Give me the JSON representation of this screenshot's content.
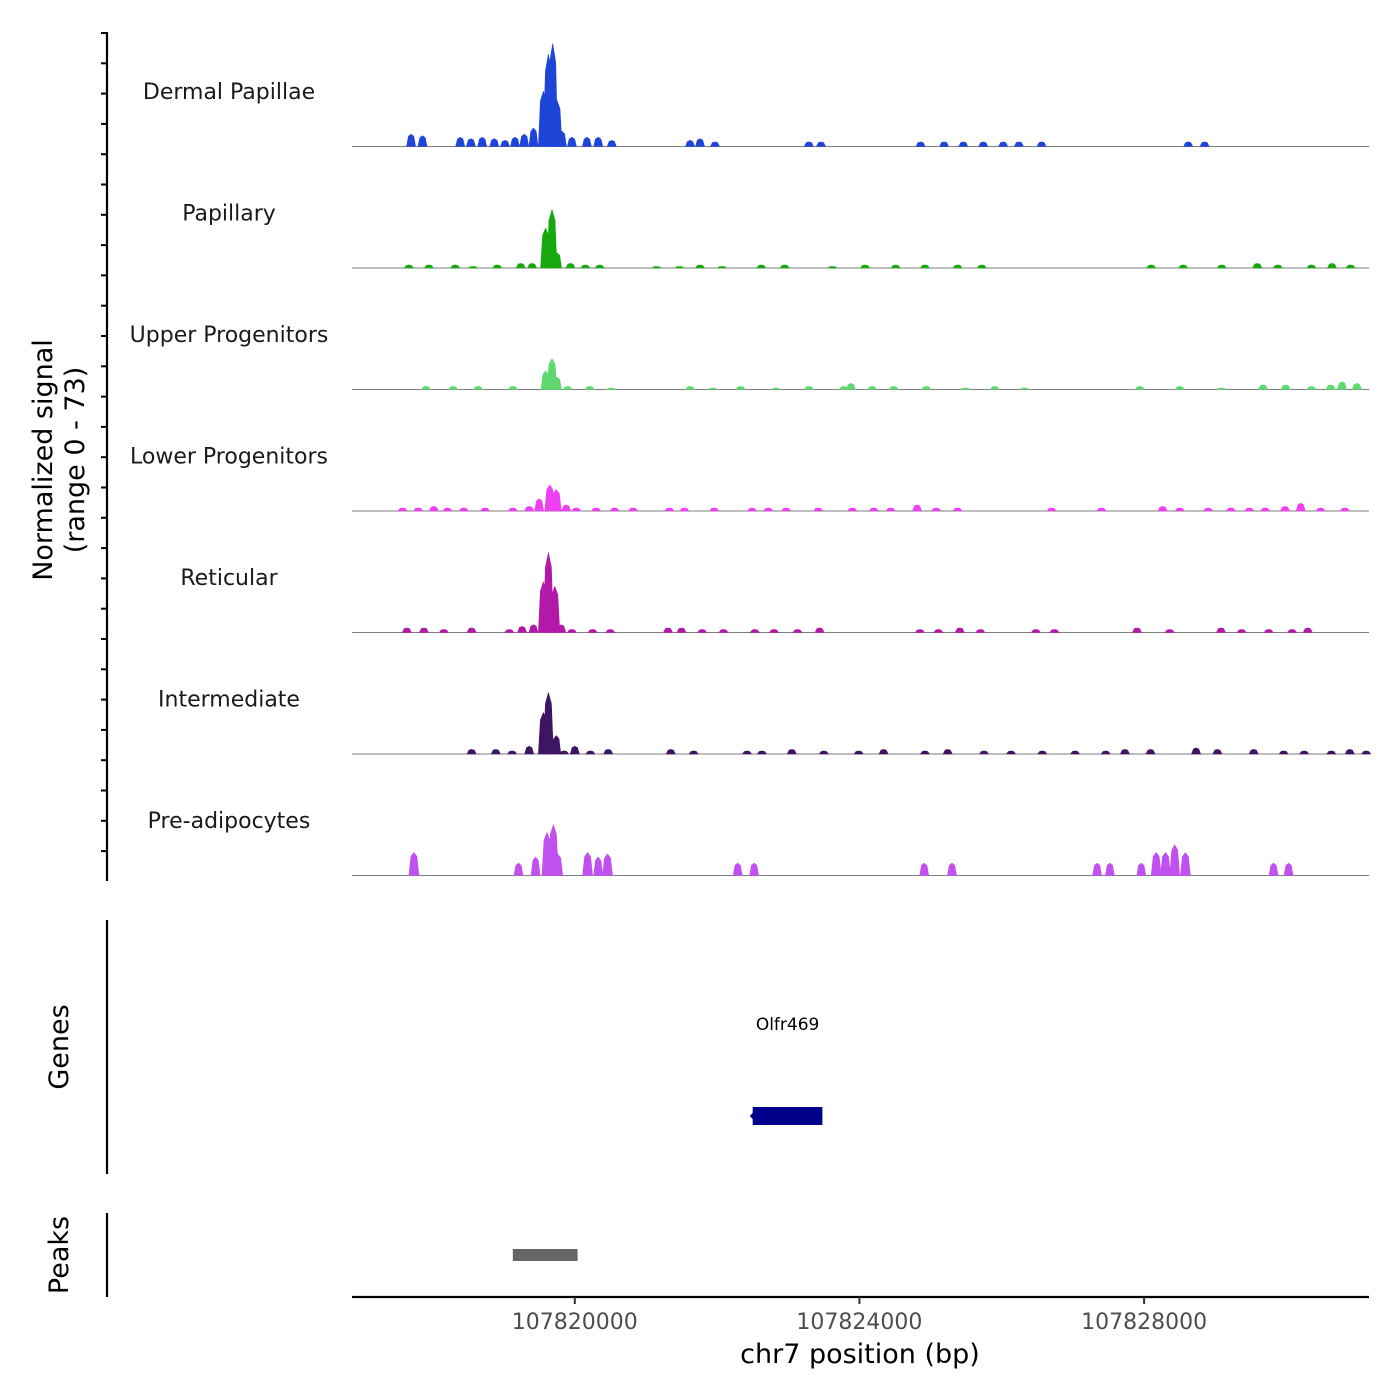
{
  "chart_data": {
    "type": "area",
    "title": "",
    "signal_panel": {
      "ylabel_line1": "Normalized signal",
      "ylabel_line2": "(range 0 - 73)",
      "ylim": [
        0,
        73
      ],
      "xlim": [
        107816870,
        107831160
      ],
      "tracks": [
        {
          "name": "Dermal Papillae",
          "color": "#1f44d8",
          "peaks": [
            [
              107817700,
              8
            ],
            [
              107817860,
              7
            ],
            [
              107818390,
              6
            ],
            [
              107818540,
              5
            ],
            [
              107818700,
              6
            ],
            [
              107818870,
              5
            ],
            [
              107819020,
              4
            ],
            [
              107819160,
              6
            ],
            [
              107819290,
              8
            ],
            [
              107819420,
              12
            ],
            [
              107819560,
              36
            ],
            [
              107819630,
              60
            ],
            [
              107819690,
              67
            ],
            [
              107819750,
              30
            ],
            [
              107819820,
              10
            ],
            [
              107819960,
              6
            ],
            [
              107820170,
              6
            ],
            [
              107820330,
              6
            ],
            [
              107820520,
              4
            ],
            [
              107821620,
              4
            ],
            [
              107821760,
              5
            ],
            [
              107821970,
              3
            ],
            [
              107823290,
              3
            ],
            [
              107823460,
              3
            ],
            [
              107824860,
              3
            ],
            [
              107825190,
              3
            ],
            [
              107825460,
              3
            ],
            [
              107825740,
              3
            ],
            [
              107826020,
              3
            ],
            [
              107826240,
              3
            ],
            [
              107826560,
              3
            ],
            [
              107828620,
              3
            ],
            [
              107828850,
              3
            ]
          ]
        },
        {
          "name": "Papillary",
          "color": "#17a80e",
          "peaks": [
            [
              107817670,
              2
            ],
            [
              107817950,
              2
            ],
            [
              107818320,
              2
            ],
            [
              107818570,
              1
            ],
            [
              107818910,
              2
            ],
            [
              107819240,
              3
            ],
            [
              107819400,
              3
            ],
            [
              107819590,
              26
            ],
            [
              107819680,
              38
            ],
            [
              107819750,
              10
            ],
            [
              107819940,
              3
            ],
            [
              107820150,
              2
            ],
            [
              107820350,
              2
            ],
            [
              107821150,
              1
            ],
            [
              107821470,
              1
            ],
            [
              107821760,
              2
            ],
            [
              107822070,
              1
            ],
            [
              107822620,
              2
            ],
            [
              107822950,
              2
            ],
            [
              107823620,
              1
            ],
            [
              107824080,
              2
            ],
            [
              107824510,
              2
            ],
            [
              107824920,
              2
            ],
            [
              107825380,
              2
            ],
            [
              107825720,
              2
            ],
            [
              107828100,
              2
            ],
            [
              107828550,
              2
            ],
            [
              107829090,
              2
            ],
            [
              107829590,
              3
            ],
            [
              107829880,
              2
            ],
            [
              107830350,
              2
            ],
            [
              107830640,
              3
            ],
            [
              107830900,
              2
            ]
          ]
        },
        {
          "name": "Upper Progenitors",
          "color": "#5fd870",
          "peaks": [
            [
              107817910,
              2
            ],
            [
              107818290,
              2
            ],
            [
              107818640,
              2
            ],
            [
              107819130,
              2
            ],
            [
              107819590,
              12
            ],
            [
              107819680,
              20
            ],
            [
              107819750,
              8
            ],
            [
              107819900,
              2
            ],
            [
              107820210,
              2
            ],
            [
              107820510,
              1
            ],
            [
              107821620,
              2
            ],
            [
              107821940,
              1
            ],
            [
              107822330,
              2
            ],
            [
              107822830,
              1
            ],
            [
              107823290,
              2
            ],
            [
              107823780,
              2
            ],
            [
              107823880,
              4
            ],
            [
              107824180,
              2
            ],
            [
              107824480,
              2
            ],
            [
              107824940,
              2
            ],
            [
              107825490,
              1
            ],
            [
              107825900,
              2
            ],
            [
              107826320,
              1
            ],
            [
              107827940,
              2
            ],
            [
              107828500,
              2
            ],
            [
              107829090,
              1
            ],
            [
              107829670,
              3
            ],
            [
              107829990,
              3
            ],
            [
              107830350,
              2
            ],
            [
              107830620,
              3
            ],
            [
              107830780,
              5
            ],
            [
              107830990,
              4
            ]
          ]
        },
        {
          "name": "Lower Progenitors",
          "color": "#ee3ff2",
          "peaks": [
            [
              107817580,
              2
            ],
            [
              107817800,
              2
            ],
            [
              107818020,
              3
            ],
            [
              107818210,
              2
            ],
            [
              107818440,
              2
            ],
            [
              107818740,
              2
            ],
            [
              107819130,
              2
            ],
            [
              107819360,
              3
            ],
            [
              107819500,
              8
            ],
            [
              107819650,
              17
            ],
            [
              107819740,
              14
            ],
            [
              107819880,
              4
            ],
            [
              107820020,
              2
            ],
            [
              107820300,
              2
            ],
            [
              107820560,
              2
            ],
            [
              107820820,
              2
            ],
            [
              107821330,
              2
            ],
            [
              107821540,
              2
            ],
            [
              107821960,
              2
            ],
            [
              107822490,
              2
            ],
            [
              107822720,
              2
            ],
            [
              107822970,
              2
            ],
            [
              107823420,
              2
            ],
            [
              107823900,
              2
            ],
            [
              107824200,
              2
            ],
            [
              107824440,
              2
            ],
            [
              107824810,
              4
            ],
            [
              107825080,
              2
            ],
            [
              107825380,
              2
            ],
            [
              107826700,
              2
            ],
            [
              107827400,
              2
            ],
            [
              107828260,
              3
            ],
            [
              107828500,
              2
            ],
            [
              107828900,
              2
            ],
            [
              107829220,
              2
            ],
            [
              107829480,
              2
            ],
            [
              107829700,
              2
            ],
            [
              107829980,
              3
            ],
            [
              107830200,
              5
            ],
            [
              107830480,
              2
            ],
            [
              107830820,
              2
            ]
          ]
        },
        {
          "name": "Reticular",
          "color": "#b319a8",
          "peaks": [
            [
              107817640,
              3
            ],
            [
              107817880,
              3
            ],
            [
              107818160,
              2
            ],
            [
              107818550,
              3
            ],
            [
              107819080,
              2
            ],
            [
              107819260,
              4
            ],
            [
              107819420,
              5
            ],
            [
              107819560,
              33
            ],
            [
              107819630,
              52
            ],
            [
              107819720,
              30
            ],
            [
              107819810,
              5
            ],
            [
              107819960,
              2
            ],
            [
              107820250,
              2
            ],
            [
              107820500,
              2
            ],
            [
              107821310,
              3
            ],
            [
              107821500,
              3
            ],
            [
              107821790,
              2
            ],
            [
              107822090,
              2
            ],
            [
              107822530,
              2
            ],
            [
              107822800,
              2
            ],
            [
              107823130,
              2
            ],
            [
              107823440,
              3
            ],
            [
              107824850,
              2
            ],
            [
              107825110,
              2
            ],
            [
              107825410,
              3
            ],
            [
              107825700,
              2
            ],
            [
              107826480,
              2
            ],
            [
              107826740,
              2
            ],
            [
              107827900,
              3
            ],
            [
              107828360,
              2
            ],
            [
              107829080,
              3
            ],
            [
              107829370,
              2
            ],
            [
              107829750,
              2
            ],
            [
              107830080,
              2
            ],
            [
              107830300,
              3
            ]
          ]
        },
        {
          "name": "Intermediate",
          "color": "#3d1563",
          "peaks": [
            [
              107818550,
              3
            ],
            [
              107818890,
              3
            ],
            [
              107819120,
              2
            ],
            [
              107819360,
              5
            ],
            [
              107819560,
              27
            ],
            [
              107819630,
              40
            ],
            [
              107819740,
              12
            ],
            [
              107819850,
              2
            ],
            [
              107820000,
              5
            ],
            [
              107820220,
              2
            ],
            [
              107820470,
              3
            ],
            [
              107821350,
              3
            ],
            [
              107821670,
              2
            ],
            [
              107822420,
              2
            ],
            [
              107822630,
              2
            ],
            [
              107823050,
              3
            ],
            [
              107823500,
              2
            ],
            [
              107823990,
              2
            ],
            [
              107824340,
              3
            ],
            [
              107824920,
              2
            ],
            [
              107825240,
              3
            ],
            [
              107825750,
              2
            ],
            [
              107826130,
              2
            ],
            [
              107826570,
              2
            ],
            [
              107827030,
              2
            ],
            [
              107827460,
              2
            ],
            [
              107827730,
              3
            ],
            [
              107828090,
              3
            ],
            [
              107828730,
              4
            ],
            [
              107829030,
              3
            ],
            [
              107829540,
              3
            ],
            [
              107829960,
              2
            ],
            [
              107830250,
              2
            ],
            [
              107830630,
              2
            ],
            [
              107830890,
              3
            ],
            [
              107831120,
              2
            ]
          ]
        },
        {
          "name": "Pre-adipocytes",
          "color": "#c050f0",
          "peaks": [
            [
              107817740,
              15
            ],
            [
              107819210,
              8
            ],
            [
              107819450,
              12
            ],
            [
              107819610,
              28
            ],
            [
              107819700,
              33
            ],
            [
              107819760,
              14
            ],
            [
              107820180,
              15
            ],
            [
              107820330,
              12
            ],
            [
              107820460,
              14
            ],
            [
              107822290,
              8
            ],
            [
              107822520,
              8
            ],
            [
              107824910,
              8
            ],
            [
              107825300,
              8
            ],
            [
              107827340,
              8
            ],
            [
              107827520,
              8
            ],
            [
              107827960,
              8
            ],
            [
              107828170,
              15
            ],
            [
              107828300,
              15
            ],
            [
              107828430,
              20
            ],
            [
              107828580,
              15
            ],
            [
              107829820,
              8
            ],
            [
              107830030,
              8
            ]
          ]
        }
      ]
    },
    "genes_panel": {
      "ylabel": "Genes",
      "genes": [
        {
          "name": "Olfr469",
          "start": 107822500,
          "end": 107823480,
          "strand": "-",
          "color": "#00008b"
        }
      ]
    },
    "peaks_panel": {
      "ylabel": "Peaks",
      "regions": [
        {
          "start": 107819130,
          "end": 107820040,
          "color": "#666666"
        }
      ]
    },
    "x_axis": {
      "xlabel": "chr7 position (bp)",
      "ticks": [
        107820000,
        107824000,
        107828000
      ],
      "tick_labels": [
        "107820000",
        "107824000",
        "107828000"
      ]
    }
  }
}
